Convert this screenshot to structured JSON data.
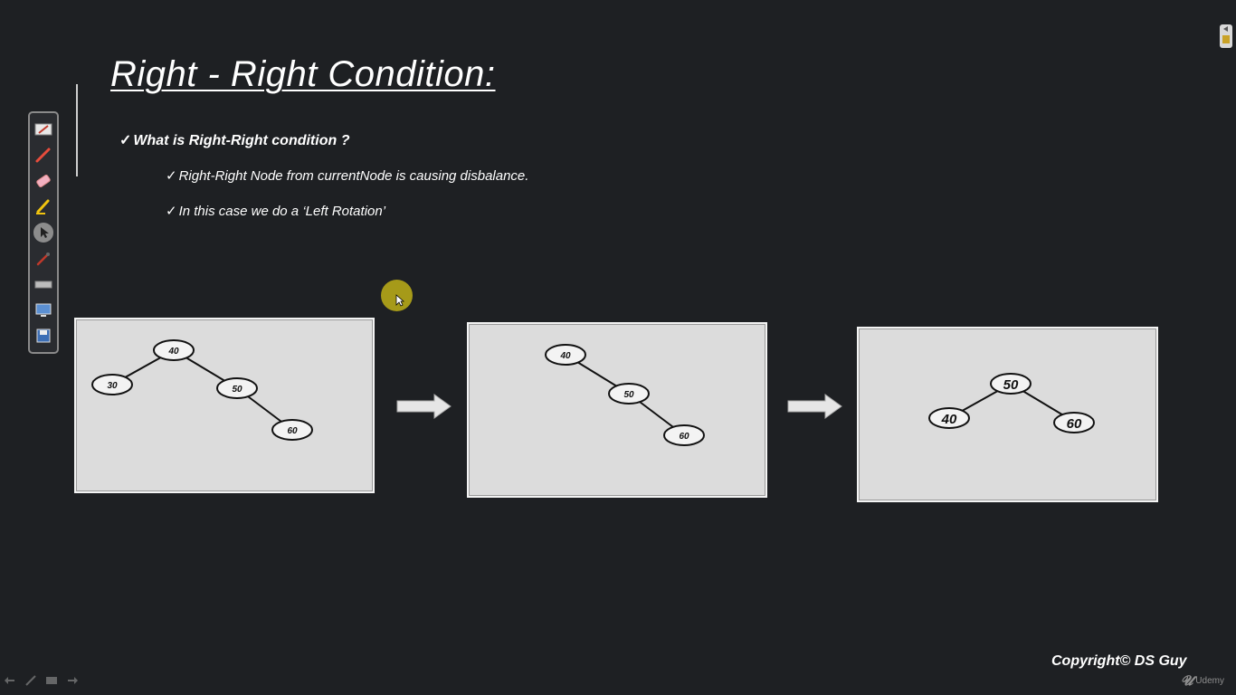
{
  "slide": {
    "title": "Right - Right Condition:",
    "bullets": {
      "check": "✓",
      "main": "What is Right-Right condition ?",
      "sub1": "Right-Right Node from currentNode is causing disbalance.",
      "sub2": "In this case we do a ‘Left Rotation’"
    },
    "trees": [
      {
        "nodes": [
          {
            "label": "40"
          },
          {
            "label": "30"
          },
          {
            "label": "50"
          },
          {
            "label": "60"
          }
        ]
      },
      {
        "nodes": [
          {
            "label": "40"
          },
          {
            "label": "50"
          },
          {
            "label": "60"
          }
        ]
      },
      {
        "nodes": [
          {
            "label": "50"
          },
          {
            "label": "40"
          },
          {
            "label": "60"
          }
        ]
      }
    ]
  },
  "toolbar": {
    "tools": [
      "select-pen-icon",
      "red-pen-icon",
      "eraser-icon",
      "highlighter-icon",
      "pointer-icon",
      "laser-pen-icon",
      "keyboard-icon",
      "screen-icon",
      "save-icon"
    ]
  },
  "footer": {
    "copyright": "Copyright© DS Guy",
    "brand": "Udemy"
  },
  "colors": {
    "background": "#1e2023",
    "panel": "#dcdcdc",
    "pointer_highlight": "#a69a19"
  }
}
